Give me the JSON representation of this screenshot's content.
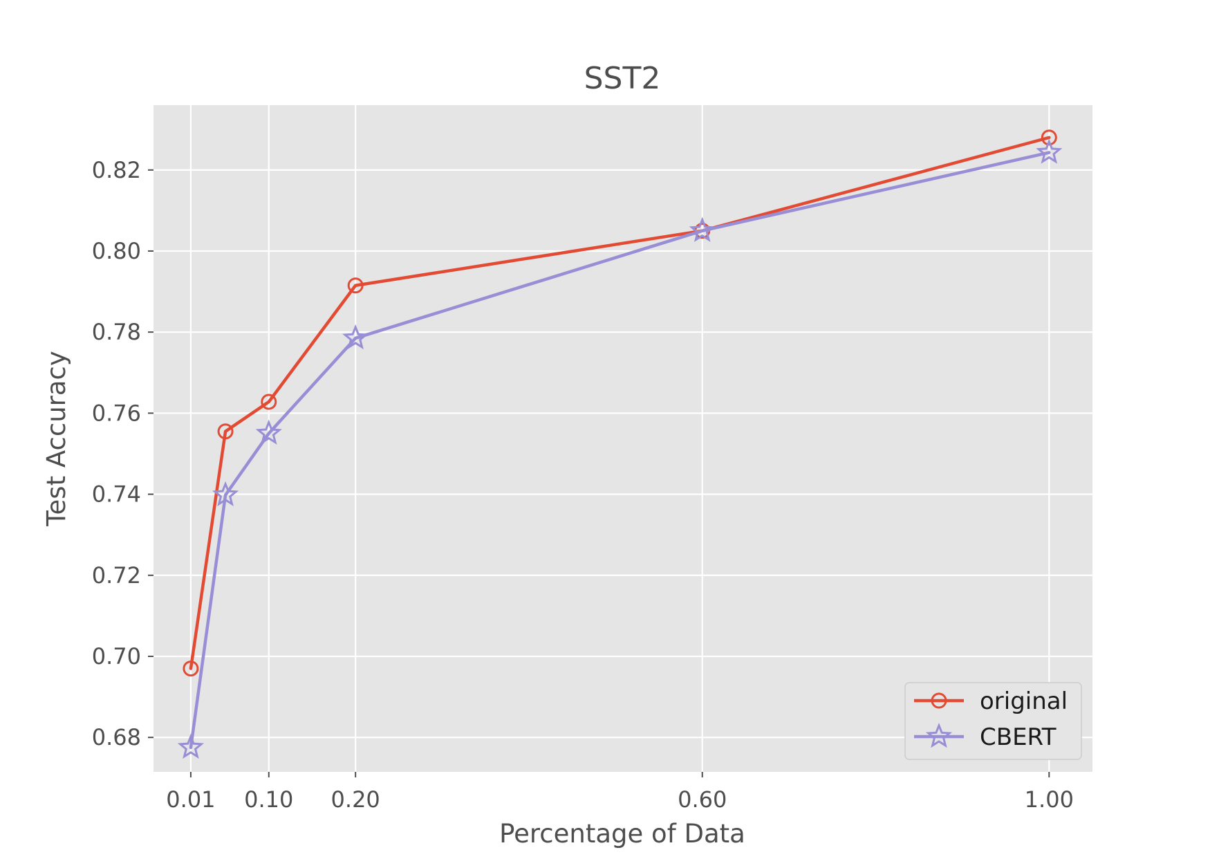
{
  "chart_data": {
    "type": "line",
    "title": "SST2",
    "xlabel": "Percentage of Data",
    "ylabel": "Test Accuracy",
    "xlim": [
      -0.033,
      1.05
    ],
    "ylim": [
      0.6715,
      0.836
    ],
    "x_ticks": [
      0.01,
      0.1,
      0.2,
      0.6,
      1.0
    ],
    "x_tick_labels": [
      "0.01",
      "0.10",
      "0.20",
      "0.60",
      "1.00"
    ],
    "y_ticks": [
      0.68,
      0.7,
      0.72,
      0.74,
      0.76,
      0.78,
      0.8,
      0.82
    ],
    "y_tick_labels": [
      "0.68",
      "0.70",
      "0.72",
      "0.74",
      "0.76",
      "0.78",
      "0.80",
      "0.82"
    ],
    "grid": true,
    "legend_position": "lower-right",
    "series": [
      {
        "name": "original",
        "color": "#e24a33",
        "marker": "circle",
        "x": [
          0.01,
          0.05,
          0.1,
          0.2,
          0.6,
          1.0
        ],
        "y": [
          0.697,
          0.7555,
          0.7628,
          0.7915,
          0.805,
          0.828
        ]
      },
      {
        "name": "CBERT",
        "color": "#988ed5",
        "marker": "star",
        "x": [
          0.01,
          0.05,
          0.1,
          0.2,
          0.6,
          1.0
        ],
        "y": [
          0.6775,
          0.7398,
          0.755,
          0.7785,
          0.805,
          0.8243
        ]
      }
    ],
    "colors": {
      "plot_background": "#e5e5e5",
      "grid": "#ffffff",
      "text": "#4d4d4d"
    }
  }
}
